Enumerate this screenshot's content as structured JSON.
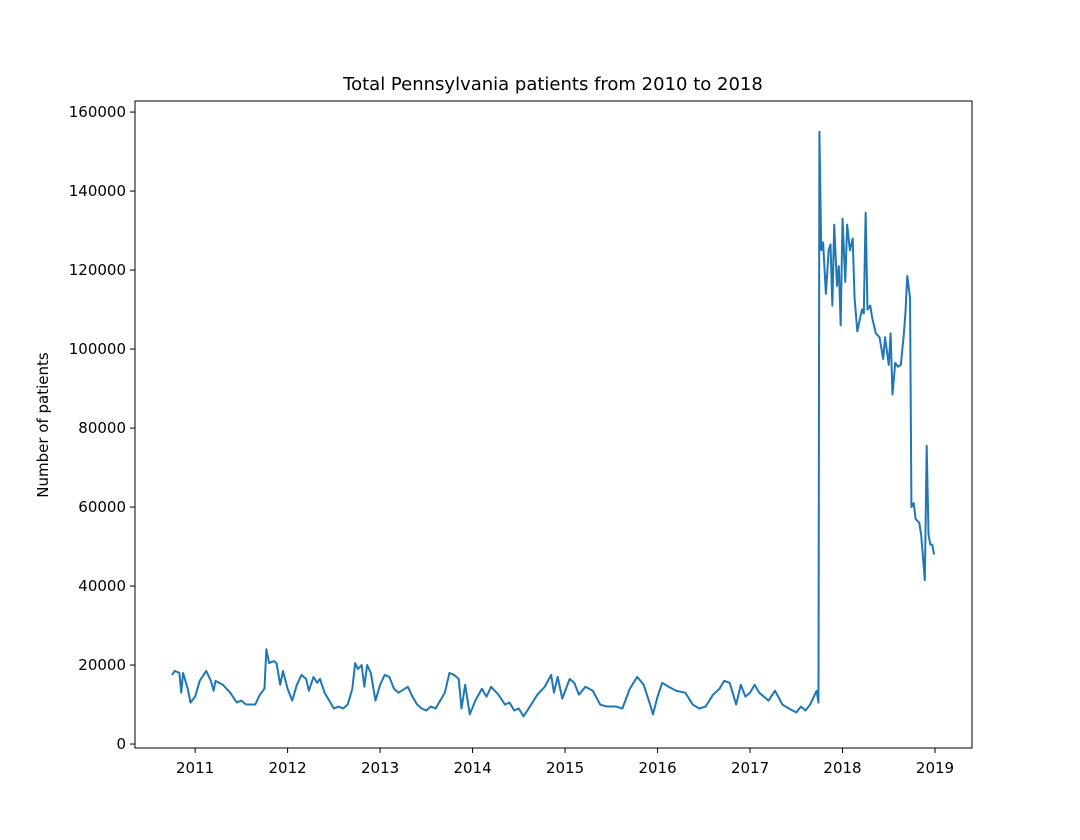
{
  "chart_data": {
    "type": "line",
    "title": "Total Pennsylvania patients from 2010 to 2018",
    "y_label": "Number of patients",
    "color": "#1f77b4",
    "x": [
      2010.75,
      2010.78,
      2010.83,
      2010.85,
      2010.87,
      2010.92,
      2010.95,
      2011.0,
      2011.05,
      2011.12,
      2011.17,
      2011.2,
      2011.22,
      2011.3,
      2011.38,
      2011.45,
      2011.5,
      2011.55,
      2011.65,
      2011.7,
      2011.75,
      2011.77,
      2011.8,
      2011.85,
      2011.88,
      2011.92,
      2011.95,
      2012.0,
      2012.05,
      2012.1,
      2012.15,
      2012.2,
      2012.23,
      2012.28,
      2012.32,
      2012.35,
      2012.4,
      2012.45,
      2012.5,
      2012.55,
      2012.6,
      2012.65,
      2012.7,
      2012.73,
      2012.76,
      2012.8,
      2012.83,
      2012.86,
      2012.9,
      2012.95,
      2013.0,
      2013.05,
      2013.1,
      2013.15,
      2013.2,
      2013.3,
      2013.35,
      2013.4,
      2013.45,
      2013.5,
      2013.55,
      2013.6,
      2013.65,
      2013.7,
      2013.75,
      2013.8,
      2013.85,
      2013.88,
      2013.92,
      2013.97,
      2014.03,
      2014.1,
      2014.15,
      2014.2,
      2014.28,
      2014.35,
      2014.4,
      2014.45,
      2014.5,
      2014.55,
      2014.62,
      2014.7,
      2014.78,
      2014.85,
      2014.88,
      2014.92,
      2014.97,
      2015.05,
      2015.1,
      2015.15,
      2015.22,
      2015.3,
      2015.38,
      2015.45,
      2015.55,
      2015.62,
      2015.7,
      2015.78,
      2015.85,
      2015.92,
      2015.95,
      2016.0,
      2016.05,
      2016.12,
      2016.2,
      2016.3,
      2016.38,
      2016.45,
      2016.52,
      2016.6,
      2016.67,
      2016.72,
      2016.78,
      2016.85,
      2016.9,
      2016.95,
      2017.0,
      2017.05,
      2017.1,
      2017.15,
      2017.2,
      2017.27,
      2017.35,
      2017.42,
      2017.5,
      2017.55,
      2017.6,
      2017.65,
      2017.7,
      2017.72,
      2017.74,
      2017.75,
      2017.77,
      2017.79,
      2017.82,
      2017.85,
      2017.87,
      2017.89,
      2017.91,
      2017.94,
      2017.96,
      2017.98,
      2018.0,
      2018.03,
      2018.05,
      2018.08,
      2018.11,
      2018.13,
      2018.16,
      2018.21,
      2018.23,
      2018.25,
      2018.27,
      2018.3,
      2018.32,
      2018.36,
      2018.4,
      2018.44,
      2018.46,
      2018.5,
      2018.52,
      2018.54,
      2018.57,
      2018.6,
      2018.63,
      2018.66,
      2018.68,
      2018.7,
      2018.73,
      2018.745,
      2018.77,
      2018.79,
      2018.83,
      2018.85,
      2018.89,
      2018.91,
      2018.93,
      2018.95,
      2018.97,
      2018.99
    ],
    "values": [
      17500,
      18500,
      18000,
      13000,
      18000,
      14000,
      10500,
      12000,
      16000,
      18500,
      16000,
      13500,
      16000,
      15000,
      13000,
      10500,
      11000,
      10000,
      10000,
      12500,
      14000,
      24000,
      20500,
      21000,
      20500,
      15000,
      18500,
      14000,
      11000,
      15000,
      17500,
      16500,
      13500,
      17000,
      15500,
      16500,
      13000,
      11000,
      9000,
      9500,
      9000,
      10000,
      14000,
      20500,
      19000,
      20000,
      14500,
      20000,
      18000,
      11000,
      15000,
      17500,
      17000,
      14000,
      13000,
      14500,
      12000,
      10000,
      9000,
      8500,
      9500,
      9000,
      11000,
      13000,
      18000,
      17500,
      16500,
      9000,
      15000,
      7500,
      11000,
      14000,
      12000,
      14500,
      12500,
      10000,
      10500,
      8500,
      9000,
      7000,
      9500,
      12500,
      14500,
      17500,
      13000,
      17000,
      11500,
      16500,
      15500,
      12500,
      14500,
      13500,
      10000,
      9500,
      9500,
      9000,
      14000,
      17000,
      15000,
      10000,
      7500,
      12000,
      15500,
      14500,
      13500,
      13000,
      10000,
      9000,
      9500,
      12500,
      14000,
      16000,
      15500,
      10000,
      15000,
      12000,
      13000,
      15000,
      13000,
      12000,
      11000,
      13500,
      10000,
      9000,
      8000,
      9500,
      8500,
      10000,
      12500,
      13500,
      10500,
      155000,
      125000,
      127000,
      114000,
      125000,
      126500,
      111000,
      131500,
      116000,
      121000,
      106000,
      133000,
      117000,
      131500,
      125000,
      128000,
      113000,
      104500,
      110000,
      109000,
      134500,
      110000,
      111000,
      108000,
      104000,
      103000,
      97500,
      103000,
      96000,
      104000,
      88500,
      96500,
      95500,
      96000,
      103000,
      109000,
      118500,
      113000,
      60000,
      61000,
      57000,
      56000,
      53000,
      41500,
      75500,
      53000,
      50500,
      50500,
      48000
    ],
    "xlim": [
      2010.35,
      2019.4
    ],
    "xticks": [
      2011,
      2012,
      2013,
      2014,
      2015,
      2016,
      2017,
      2018,
      2019
    ],
    "ylim": [
      -1000,
      162800
    ],
    "yticks": [
      0,
      20000,
      40000,
      60000,
      80000,
      100000,
      120000,
      140000,
      160000
    ]
  }
}
